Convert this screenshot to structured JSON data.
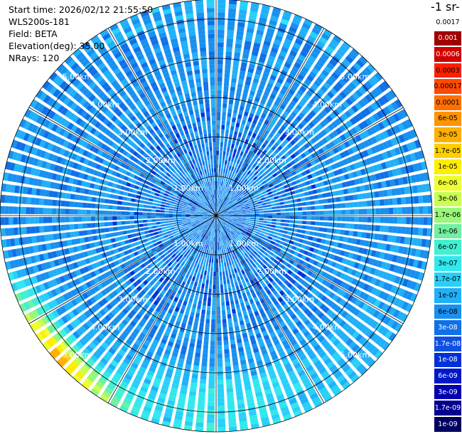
{
  "info": {
    "start_time": "Start time: 2026/02/12 21:55:50",
    "instrument": "WLS200s-181",
    "field": "Field: BETA",
    "elevation": "Elevation(deg): 35.00",
    "nrays": "NRays: 120"
  },
  "colorbar": {
    "units_title": "-1 sr-",
    "ticks": [
      "0.0017",
      "0.001",
      "0.0006",
      "0.0003",
      "0.00017",
      "0.0001",
      "6e-05",
      "3e-05",
      "1.7e-05",
      "1e-05",
      "6e-06",
      "3e-06",
      "1.7e-06",
      "1e-06",
      "6e-07",
      "3e-07",
      "1.7e-07",
      "1e-07",
      "6e-08",
      "3e-08",
      "1.7e-08",
      "1e-08",
      "6e-09",
      "3e-09",
      "1.7e-09",
      "1e-09"
    ],
    "colors": [
      "#ffffff",
      "#a00000",
      "#d00000",
      "#ff2000",
      "#ff4a00",
      "#ff7000",
      "#ff9400",
      "#ffb000",
      "#ffcf00",
      "#ffee00",
      "#eeff30",
      "#c8ff50",
      "#98f878",
      "#70f0a0",
      "#40f0d0",
      "#30e8ee",
      "#28d0f8",
      "#20b0f8",
      "#1890f0",
      "#1070e8",
      "#1050e0",
      "#0030d8",
      "#0018c8",
      "#0000b0",
      "#00008c",
      "#000060"
    ]
  },
  "chart_data": {
    "type": "heatmap",
    "projection": "polar PPI scan",
    "title": "",
    "field": "BETA",
    "elevation_deg": 35.0,
    "n_rays": 120,
    "range_max_km": 5.5,
    "range_rings_km": [
      1,
      2,
      3,
      4,
      5
    ],
    "ring_labels": [
      "1.00km",
      "2.00km",
      "3.00km",
      "4.00km",
      "5.00km"
    ],
    "spokes_deg": [
      0,
      30,
      60,
      90,
      120,
      150,
      180,
      210,
      240,
      270,
      300,
      330
    ],
    "color_scale": "log",
    "value_range": [
      1e-09,
      0.0017
    ],
    "pattern_description_levels": {
      "background_level": 6e-08,
      "inner_speckle_level": 1.7e-08,
      "southern_band_level": 3e-07,
      "southwest_edge_level": 3e-05
    }
  }
}
